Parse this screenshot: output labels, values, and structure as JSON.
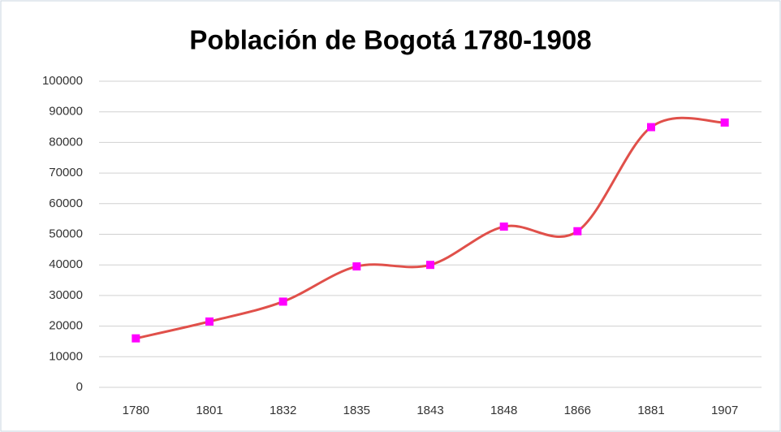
{
  "chart_data": {
    "type": "line",
    "title": "Población de Bogotá 1780-1908",
    "categories": [
      "1780",
      "1801",
      "1832",
      "1835",
      "1843",
      "1848",
      "1866",
      "1881",
      "1907"
    ],
    "series": [
      {
        "name": "Población",
        "color": "#e0504a",
        "marker_color": "#ff00ff",
        "values": [
          16000,
          21500,
          28000,
          39500,
          40000,
          52500,
          51000,
          85000,
          86500
        ]
      }
    ],
    "ylim": [
      0,
      100000
    ],
    "yticks": [
      0,
      10000,
      20000,
      30000,
      40000,
      50000,
      60000,
      70000,
      80000,
      90000,
      100000
    ],
    "grid": true,
    "smooth": true
  }
}
